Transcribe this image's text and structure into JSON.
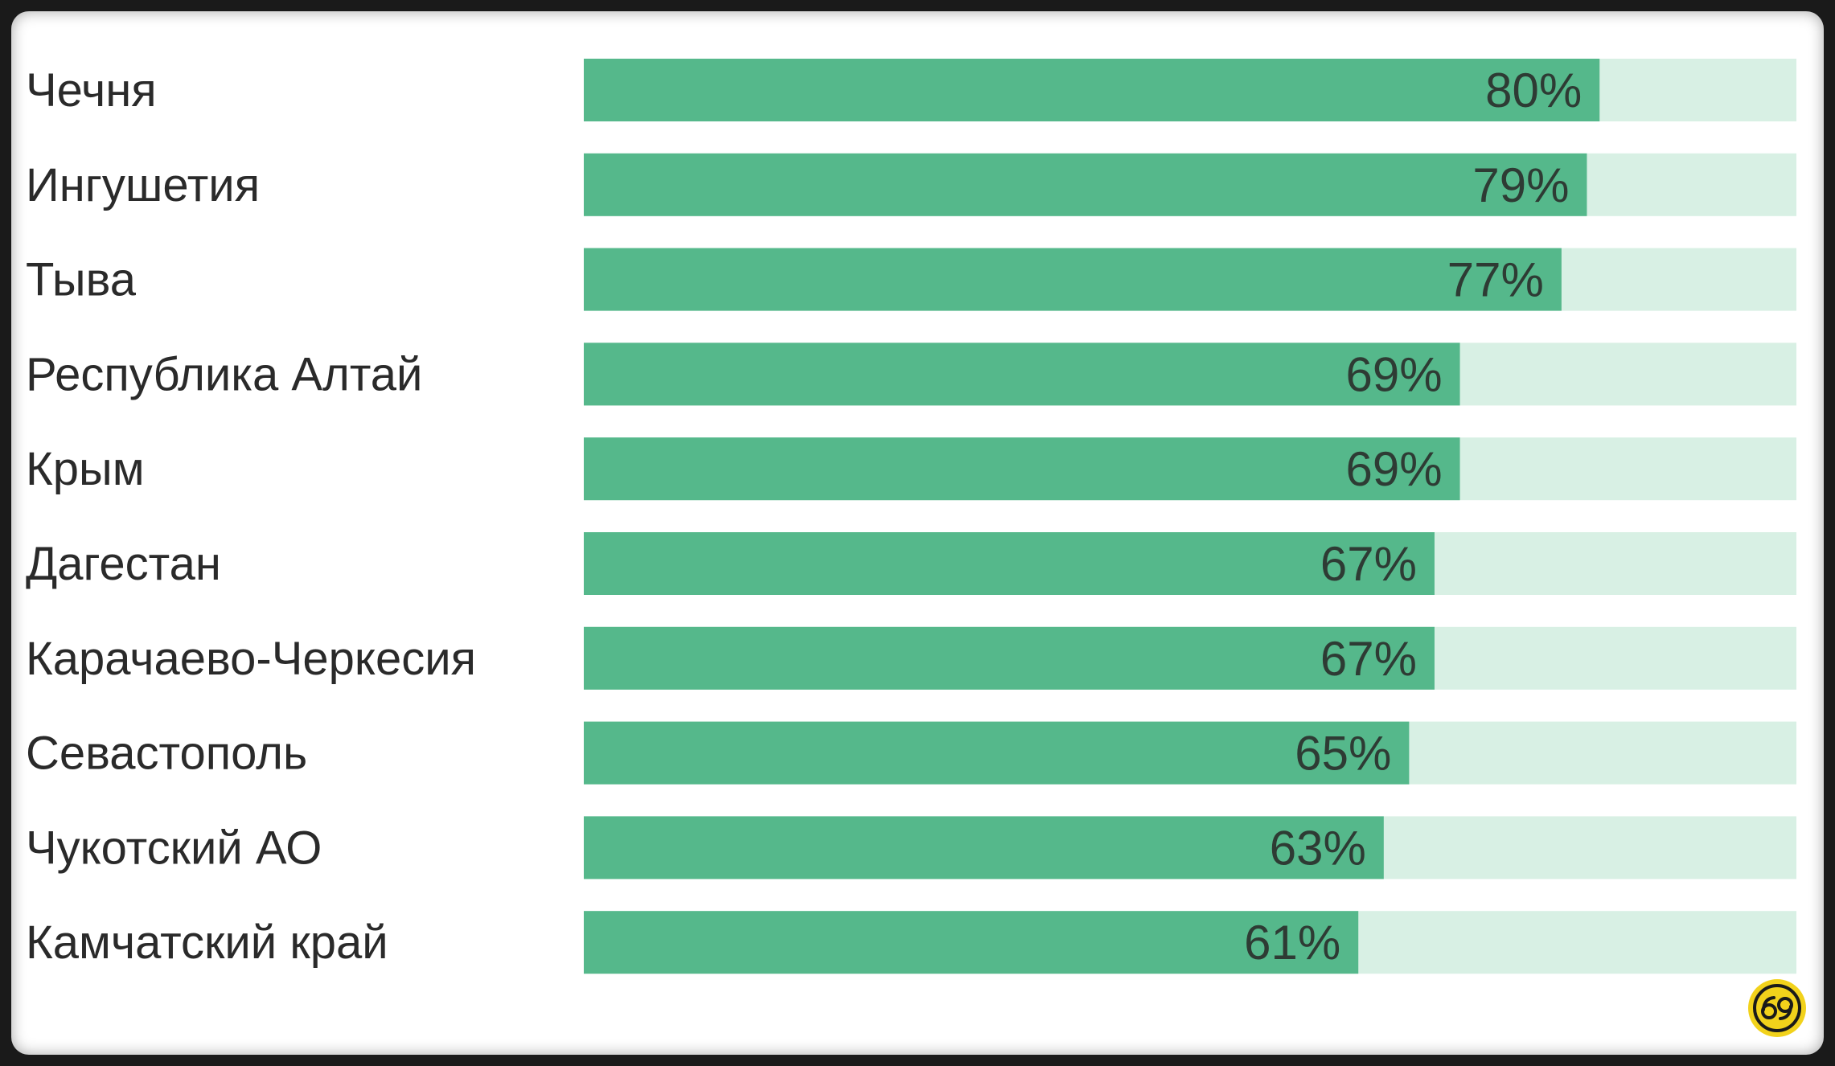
{
  "chart_data": {
    "type": "bar",
    "orientation": "horizontal",
    "categories": [
      "Чечня",
      "Ингушетия",
      "Тыва",
      "Республика Алтай",
      "Крым",
      "Дагестан",
      "Карачаево-Черкесия",
      "Севастополь",
      "Чукотский  АО",
      "Камчатский край"
    ],
    "values": [
      80,
      79,
      77,
      69,
      69,
      67,
      67,
      65,
      63,
      61
    ],
    "value_labels": [
      "80%",
      "79%",
      "77%",
      "69%",
      "69%",
      "67%",
      "67%",
      "65%",
      "63%",
      "61%"
    ],
    "xlim": [
      0,
      100
    ],
    "grid": false,
    "legend": "none",
    "title": "",
    "xlabel": "",
    "ylabel": ""
  },
  "colors": {
    "bar": "#55b88b",
    "track": "#d8f0e4",
    "background": "#ffffff",
    "frame": "#1a1a1a",
    "logo": "#f2d21b"
  },
  "icons": {
    "logo": "circled-69-logo"
  }
}
